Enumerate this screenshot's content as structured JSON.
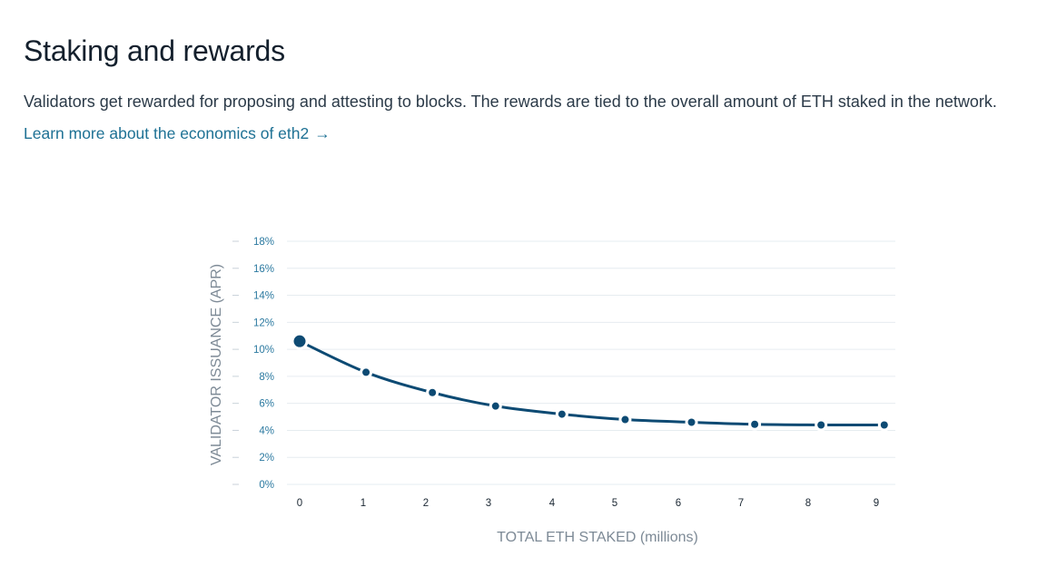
{
  "section": {
    "title": "Staking and rewards",
    "description": "Validators get rewarded for proposing and attesting to blocks. The rewards are tied to the overall amount of ETH staked in the network.",
    "link_text": "Learn more about the economics of eth2",
    "link_arrow": "→"
  },
  "colors": {
    "line": "#0d4a73",
    "gridline": "#e6ecf0",
    "ytick": "#2b79a0",
    "link": "#1e7194"
  },
  "chart_data": {
    "type": "line",
    "xlabel": "TOTAL ETH STAKED (millions)",
    "ylabel": "VALIDATOR ISSUANCE (APR)",
    "grid": true,
    "xlim": [
      0,
      9.2
    ],
    "ylim": [
      0,
      18
    ],
    "y_ticks": [
      "0%",
      "2%",
      "4%",
      "6%",
      "8%",
      "10%",
      "12%",
      "14%",
      "16%",
      "18%"
    ],
    "x_ticks": [
      "0",
      "1",
      "2",
      "3",
      "4",
      "5",
      "6",
      "7",
      "8",
      "9"
    ],
    "series": [
      {
        "x": [
          0,
          1.05,
          2.1,
          3.1,
          4.15,
          5.15,
          6.2,
          7.2,
          8.25,
          9.25
        ],
        "y": [
          10.6,
          8.3,
          6.8,
          5.8,
          5.2,
          4.8,
          4.6,
          4.45,
          4.4,
          4.4
        ]
      }
    ]
  }
}
